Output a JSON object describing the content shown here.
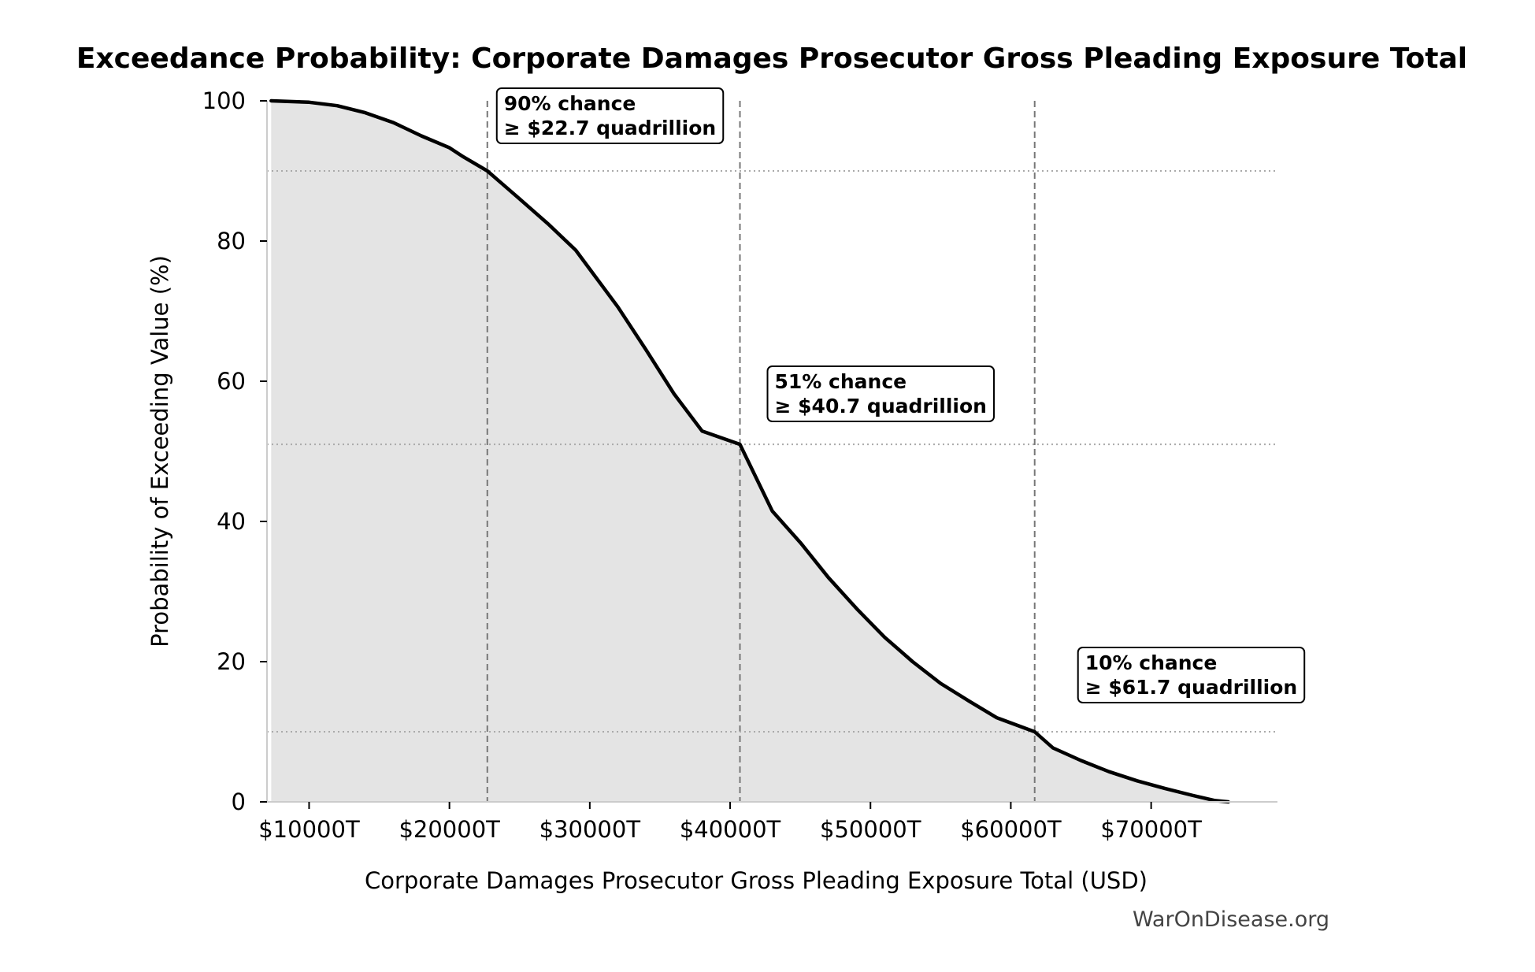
{
  "chart_data": {
    "type": "area",
    "title": "Exceedance Probability: Corporate Damages Prosecutor Gross Pleading Exposure Total",
    "xlabel": "Corporate Damages Prosecutor Gross Pleading Exposure Total (USD)",
    "ylabel": "Probability of Exceeding Value (%)",
    "xlim": [
      7000,
      79000
    ],
    "ylim": [
      0,
      100
    ],
    "x_ticks": [
      10000,
      20000,
      30000,
      40000,
      50000,
      60000,
      70000
    ],
    "x_tick_labels": [
      "$10000T",
      "$20000T",
      "$30000T",
      "$40000T",
      "$50000T",
      "$60000T",
      "$70000T"
    ],
    "y_ticks": [
      0,
      20,
      40,
      60,
      80,
      100
    ],
    "y_tick_labels": [
      "0",
      "20",
      "40",
      "60",
      "80",
      "100"
    ],
    "x": [
      7300,
      10000,
      12000,
      14000,
      16000,
      18000,
      20000,
      21000,
      22700,
      25000,
      27000,
      29000,
      30000,
      32000,
      34000,
      36000,
      38000,
      40700,
      43000,
      45000,
      47000,
      49000,
      51000,
      53000,
      55000,
      57000,
      59000,
      61700,
      63000,
      65000,
      67000,
      69000,
      71000,
      73000,
      74500,
      75500
    ],
    "y": [
      100,
      99.8,
      99.3,
      98.3,
      96.9,
      95.0,
      93.3,
      92.0,
      90,
      86.0,
      82.5,
      78.7,
      76.0,
      70.6,
      64.5,
      58.2,
      52.9,
      51,
      41.5,
      37.0,
      32.0,
      27.6,
      23.5,
      20.0,
      16.9,
      14.4,
      12.0,
      10,
      7.7,
      5.9,
      4.3,
      3.0,
      1.9,
      0.9,
      0.2,
      0
    ],
    "reference_lines": [
      {
        "x": 22700,
        "y": 90,
        "label_line1": "90% chance",
        "label_line2": "≥ $22.7 quadrillion"
      },
      {
        "x": 40700,
        "y": 51,
        "label_line1": "51% chance",
        "label_line2": "≥ $40.7 quadrillion"
      },
      {
        "x": 61700,
        "y": 10,
        "label_line1": "10% chance",
        "label_line2": "≥ $61.7 quadrillion"
      }
    ],
    "grid": false,
    "colors": {
      "line": "#000000",
      "fill": "#e4e4e4",
      "refline": "#777777",
      "hline": "#aaaaaa"
    }
  },
  "watermark": "WarOnDisease.org"
}
